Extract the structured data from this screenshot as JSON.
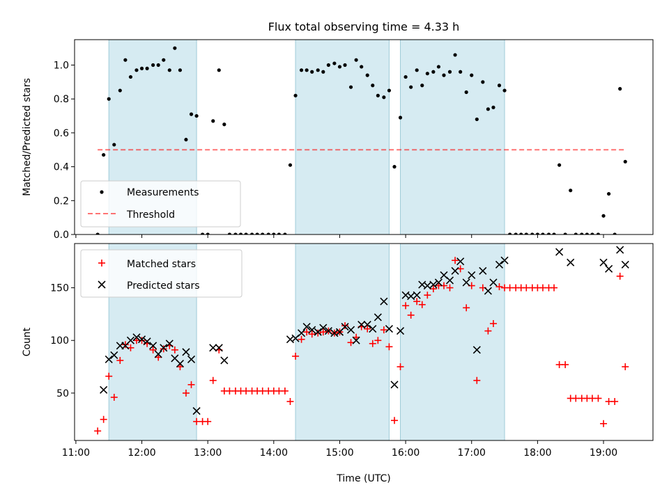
{
  "chart_data": {
    "type": "scatter",
    "title": "Flux total observing time = 4.33 h",
    "xlabel": "Time (UTC)",
    "xlim": [
      10.98,
      19.75
    ],
    "x_ticks": [
      {
        "v": 11,
        "label": "11:00"
      },
      {
        "v": 12,
        "label": "12:00"
      },
      {
        "v": 13,
        "label": "13:00"
      },
      {
        "v": 14,
        "label": "14:00"
      },
      {
        "v": 15,
        "label": "15:00"
      },
      {
        "v": 16,
        "label": "16:00"
      },
      {
        "v": 17,
        "label": "17:00"
      },
      {
        "v": 18,
        "label": "18:00"
      },
      {
        "v": 19,
        "label": "19:00"
      }
    ],
    "shaded_intervals": [
      [
        11.5,
        12.83
      ],
      [
        14.33,
        15.75
      ],
      [
        15.92,
        17.5
      ]
    ],
    "top": {
      "ylabel": "Matched/Predicted stars",
      "ylim": [
        0,
        1.15
      ],
      "y_ticks": [
        {
          "v": 0,
          "label": "0.0"
        },
        {
          "v": 0.2,
          "label": "0.2"
        },
        {
          "v": 0.4,
          "label": "0.4"
        },
        {
          "v": 0.6,
          "label": "0.6"
        },
        {
          "v": 0.8,
          "label": "0.8"
        },
        {
          "v": 1.0,
          "label": "1.0"
        }
      ],
      "legend": {
        "position": "lower-left",
        "measurements": "Measurements",
        "threshold": "Threshold"
      },
      "threshold": {
        "value": 0.5,
        "x_start": 11.33,
        "x_end": 19.33
      },
      "measurements": [
        [
          11.33,
          0.0
        ],
        [
          11.42,
          0.47
        ],
        [
          11.5,
          0.8
        ],
        [
          11.58,
          0.53
        ],
        [
          11.67,
          0.85
        ],
        [
          11.75,
          1.03
        ],
        [
          11.83,
          0.93
        ],
        [
          11.92,
          0.97
        ],
        [
          12.0,
          0.98
        ],
        [
          12.08,
          0.98
        ],
        [
          12.17,
          1.0
        ],
        [
          12.25,
          1.0
        ],
        [
          12.33,
          1.03
        ],
        [
          12.42,
          0.97
        ],
        [
          12.5,
          1.1
        ],
        [
          12.58,
          0.97
        ],
        [
          12.67,
          0.56
        ],
        [
          12.75,
          0.71
        ],
        [
          12.83,
          0.7
        ],
        [
          12.92,
          0.0
        ],
        [
          13.0,
          0.0
        ],
        [
          13.08,
          0.67
        ],
        [
          13.17,
          0.97
        ],
        [
          13.25,
          0.65
        ],
        [
          13.33,
          0.0
        ],
        [
          13.42,
          0.0
        ],
        [
          13.5,
          0.0
        ],
        [
          13.58,
          0.0
        ],
        [
          13.67,
          0.0
        ],
        [
          13.75,
          0.0
        ],
        [
          13.83,
          0.0
        ],
        [
          13.92,
          0.0
        ],
        [
          14.0,
          0.0
        ],
        [
          14.08,
          0.0
        ],
        [
          14.17,
          0.0
        ],
        [
          14.25,
          0.41
        ],
        [
          14.33,
          0.82
        ],
        [
          14.42,
          0.97
        ],
        [
          14.5,
          0.97
        ],
        [
          14.58,
          0.96
        ],
        [
          14.67,
          0.97
        ],
        [
          14.75,
          0.96
        ],
        [
          14.83,
          1.0
        ],
        [
          14.92,
          1.01
        ],
        [
          15.0,
          0.99
        ],
        [
          15.08,
          1.0
        ],
        [
          15.17,
          0.87
        ],
        [
          15.25,
          1.03
        ],
        [
          15.33,
          0.99
        ],
        [
          15.42,
          0.94
        ],
        [
          15.5,
          0.88
        ],
        [
          15.58,
          0.82
        ],
        [
          15.67,
          0.81
        ],
        [
          15.75,
          0.85
        ],
        [
          15.83,
          0.4
        ],
        [
          15.92,
          0.69
        ],
        [
          16.0,
          0.93
        ],
        [
          16.08,
          0.87
        ],
        [
          16.17,
          0.97
        ],
        [
          16.25,
          0.88
        ],
        [
          16.33,
          0.95
        ],
        [
          16.42,
          0.96
        ],
        [
          16.5,
          0.99
        ],
        [
          16.58,
          0.94
        ],
        [
          16.67,
          0.96
        ],
        [
          16.75,
          1.06
        ],
        [
          16.83,
          0.96
        ],
        [
          16.92,
          0.84
        ],
        [
          17.0,
          0.94
        ],
        [
          17.08,
          0.68
        ],
        [
          17.17,
          0.9
        ],
        [
          17.25,
          0.74
        ],
        [
          17.33,
          0.75
        ],
        [
          17.42,
          0.88
        ],
        [
          17.5,
          0.85
        ],
        [
          17.58,
          0.0
        ],
        [
          17.67,
          0.0
        ],
        [
          17.75,
          0.0
        ],
        [
          17.83,
          0.0
        ],
        [
          17.92,
          0.0
        ],
        [
          18.0,
          0.0
        ],
        [
          18.08,
          0.0
        ],
        [
          18.17,
          0.0
        ],
        [
          18.25,
          0.0
        ],
        [
          18.33,
          0.41
        ],
        [
          18.42,
          0.0
        ],
        [
          18.5,
          0.26
        ],
        [
          18.58,
          0.0
        ],
        [
          18.67,
          0.0
        ],
        [
          18.75,
          0.0
        ],
        [
          18.83,
          0.0
        ],
        [
          18.92,
          0.0
        ],
        [
          19.0,
          0.11
        ],
        [
          19.08,
          0.24
        ],
        [
          19.17,
          0.0
        ],
        [
          19.25,
          0.86
        ],
        [
          19.33,
          0.43
        ]
      ]
    },
    "bottom": {
      "ylabel": "Count",
      "ylim": [
        5,
        192
      ],
      "y_ticks": [
        {
          "v": 50,
          "label": "50"
        },
        {
          "v": 100,
          "label": "100"
        },
        {
          "v": 150,
          "label": "150"
        }
      ],
      "legend": {
        "position": "top-left",
        "matched": "Matched stars",
        "predicted": "Predicted stars"
      },
      "matched": [
        [
          11.33,
          14
        ],
        [
          11.42,
          25
        ],
        [
          11.5,
          66
        ],
        [
          11.58,
          46
        ],
        [
          11.67,
          81
        ],
        [
          11.75,
          96
        ],
        [
          11.83,
          93
        ],
        [
          11.92,
          100
        ],
        [
          12.0,
          100
        ],
        [
          12.08,
          97
        ],
        [
          12.17,
          91
        ],
        [
          12.25,
          84
        ],
        [
          12.33,
          92
        ],
        [
          12.42,
          95
        ],
        [
          12.5,
          91
        ],
        [
          12.58,
          75
        ],
        [
          12.67,
          50
        ],
        [
          12.75,
          58
        ],
        [
          12.83,
          23
        ],
        [
          12.92,
          23
        ],
        [
          13.0,
          23
        ],
        [
          13.08,
          62
        ],
        [
          13.17,
          91
        ],
        [
          13.25,
          52
        ],
        [
          13.33,
          52
        ],
        [
          13.42,
          52
        ],
        [
          13.5,
          52
        ],
        [
          13.58,
          52
        ],
        [
          13.67,
          52
        ],
        [
          13.75,
          52
        ],
        [
          13.83,
          52
        ],
        [
          13.92,
          52
        ],
        [
          14.0,
          52
        ],
        [
          14.08,
          52
        ],
        [
          14.17,
          52
        ],
        [
          14.25,
          42
        ],
        [
          14.33,
          85
        ],
        [
          14.42,
          101
        ],
        [
          14.5,
          108
        ],
        [
          14.58,
          106
        ],
        [
          14.67,
          107
        ],
        [
          14.75,
          108
        ],
        [
          14.83,
          109
        ],
        [
          14.92,
          107
        ],
        [
          15.0,
          108
        ],
        [
          15.08,
          114
        ],
        [
          15.17,
          98
        ],
        [
          15.25,
          103
        ],
        [
          15.33,
          113
        ],
        [
          15.42,
          111
        ],
        [
          15.5,
          97
        ],
        [
          15.58,
          100
        ],
        [
          15.67,
          110
        ],
        [
          15.75,
          94
        ],
        [
          15.83,
          24
        ],
        [
          15.92,
          75
        ],
        [
          16.0,
          133
        ],
        [
          16.08,
          124
        ],
        [
          16.17,
          137
        ],
        [
          16.25,
          134
        ],
        [
          16.33,
          143
        ],
        [
          16.42,
          149
        ],
        [
          16.5,
          152
        ],
        [
          16.58,
          152
        ],
        [
          16.67,
          150
        ],
        [
          16.75,
          176
        ],
        [
          16.83,
          168
        ],
        [
          16.92,
          131
        ],
        [
          17.0,
          152
        ],
        [
          17.08,
          62
        ],
        [
          17.17,
          150
        ],
        [
          17.25,
          109
        ],
        [
          17.33,
          116
        ],
        [
          17.42,
          151
        ],
        [
          17.5,
          150
        ],
        [
          17.58,
          150
        ],
        [
          17.67,
          150
        ],
        [
          17.75,
          150
        ],
        [
          17.83,
          150
        ],
        [
          17.92,
          150
        ],
        [
          18.0,
          150
        ],
        [
          18.08,
          150
        ],
        [
          18.17,
          150
        ],
        [
          18.25,
          150
        ],
        [
          18.33,
          77
        ],
        [
          18.42,
          77
        ],
        [
          18.5,
          45
        ],
        [
          18.58,
          45
        ],
        [
          18.67,
          45
        ],
        [
          18.75,
          45
        ],
        [
          18.83,
          45
        ],
        [
          18.92,
          45
        ],
        [
          19.0,
          21
        ],
        [
          19.08,
          42
        ],
        [
          19.17,
          42
        ],
        [
          19.25,
          161
        ],
        [
          19.33,
          75
        ]
      ],
      "predicted": [
        [
          11.42,
          53
        ],
        [
          11.5,
          82
        ],
        [
          11.58,
          86
        ],
        [
          11.67,
          95
        ],
        [
          11.75,
          95
        ],
        [
          11.83,
          100
        ],
        [
          11.92,
          103
        ],
        [
          12.0,
          101
        ],
        [
          12.08,
          99
        ],
        [
          12.17,
          95
        ],
        [
          12.25,
          87
        ],
        [
          12.33,
          93
        ],
        [
          12.42,
          97
        ],
        [
          12.5,
          83
        ],
        [
          12.58,
          78
        ],
        [
          12.67,
          89
        ],
        [
          12.75,
          82
        ],
        [
          12.83,
          33
        ],
        [
          13.08,
          93
        ],
        [
          13.17,
          93
        ],
        [
          13.25,
          81
        ],
        [
          14.25,
          101
        ],
        [
          14.33,
          102
        ],
        [
          14.42,
          107
        ],
        [
          14.5,
          113
        ],
        [
          14.58,
          110
        ],
        [
          14.67,
          108
        ],
        [
          14.75,
          112
        ],
        [
          14.83,
          109
        ],
        [
          14.92,
          107
        ],
        [
          15.0,
          108
        ],
        [
          15.08,
          113
        ],
        [
          15.17,
          110
        ],
        [
          15.25,
          100
        ],
        [
          15.33,
          115
        ],
        [
          15.42,
          115
        ],
        [
          15.5,
          111
        ],
        [
          15.58,
          122
        ],
        [
          15.67,
          137
        ],
        [
          15.75,
          111
        ],
        [
          15.83,
          58
        ],
        [
          15.92,
          109
        ],
        [
          16.0,
          143
        ],
        [
          16.08,
          142
        ],
        [
          16.17,
          143
        ],
        [
          16.25,
          153
        ],
        [
          16.33,
          152
        ],
        [
          16.42,
          153
        ],
        [
          16.5,
          155
        ],
        [
          16.58,
          162
        ],
        [
          16.67,
          157
        ],
        [
          16.75,
          166
        ],
        [
          16.83,
          175
        ],
        [
          16.92,
          155
        ],
        [
          17.0,
          162
        ],
        [
          17.08,
          91
        ],
        [
          17.17,
          166
        ],
        [
          17.25,
          147
        ],
        [
          17.33,
          155
        ],
        [
          17.42,
          172
        ],
        [
          17.5,
          176
        ],
        [
          18.33,
          184
        ],
        [
          18.5,
          174
        ],
        [
          19.0,
          174
        ],
        [
          19.08,
          168
        ],
        [
          19.25,
          186
        ],
        [
          19.33,
          172
        ]
      ]
    }
  }
}
